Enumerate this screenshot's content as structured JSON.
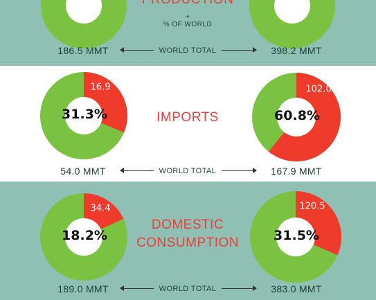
{
  "colors": {
    "band_dark": "#8fc0b3",
    "band_light": "#ffffff",
    "green": "#7cc242",
    "red": "#ef3b2c",
    "title_red": "#e8403a"
  },
  "production": {
    "title": "PRODUCTION",
    "subtitle": "% OF WORLD",
    "world_total_label": "WORLD TOTAL",
    "left_total": "186.5 MMT",
    "right_total": "398.2 MMT"
  },
  "imports": {
    "title": "IMPORTS",
    "world_total_label": "WORLD TOTAL",
    "left_total": "54.0 MMT",
    "right_total": "167.9 MMT"
  },
  "consumption": {
    "title_line1": "DOMESTIC",
    "title_line2": "CONSUMPTION",
    "world_total_label": "WORLD TOTAL",
    "left_total": "189.0 MMT",
    "right_total": "383.0 MMT"
  },
  "chart_data": [
    {
      "type": "pie",
      "group": "imports",
      "position": "left",
      "share_percent": 31.3,
      "share_label": "31.3%",
      "slice_value": 16.9,
      "slice_label": "16.9",
      "world_total": 54.0
    },
    {
      "type": "pie",
      "group": "imports",
      "position": "right",
      "share_percent": 60.8,
      "share_label": "60.8%",
      "slice_value": 102.0,
      "slice_label": "102.0",
      "world_total": 167.9
    },
    {
      "type": "pie",
      "group": "consumption",
      "position": "left",
      "share_percent": 18.2,
      "share_label": "18.2%",
      "slice_value": 34.4,
      "slice_label": "34.4",
      "world_total": 189.0
    },
    {
      "type": "pie",
      "group": "consumption",
      "position": "right",
      "share_percent": 31.5,
      "share_label": "31.5%",
      "slice_value": 120.5,
      "slice_label": "120.5",
      "world_total": 383.0
    }
  ]
}
